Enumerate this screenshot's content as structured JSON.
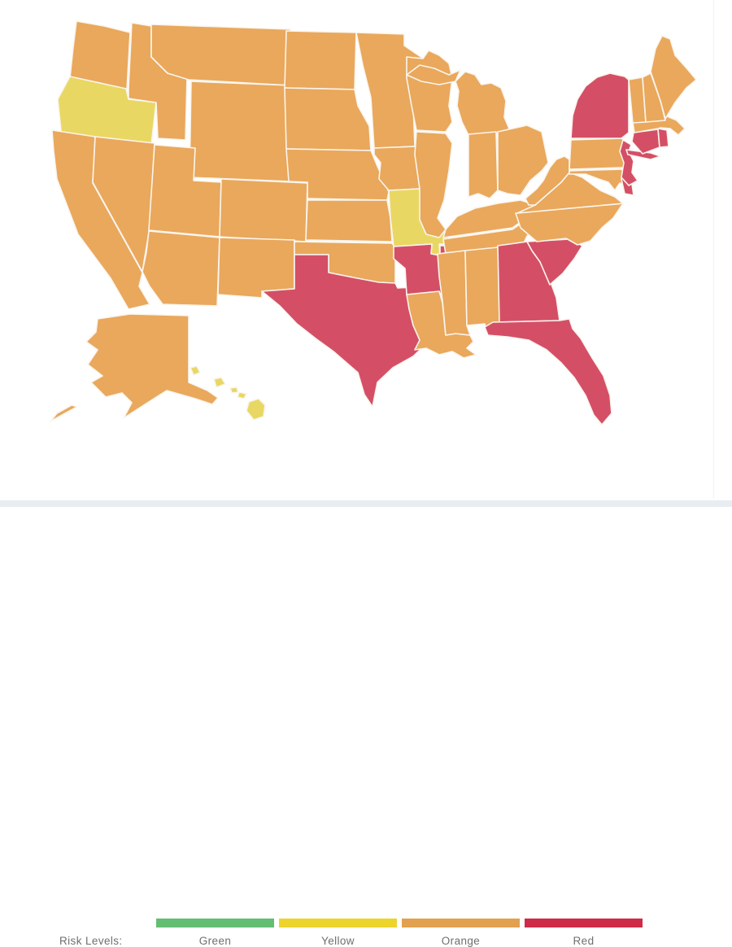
{
  "legend": {
    "title": "Risk Levels:",
    "levels": [
      {
        "key": "green",
        "label": "Green",
        "color": "#63bd72"
      },
      {
        "key": "yellow",
        "label": "Yellow",
        "color": "#ecd42d"
      },
      {
        "key": "orange",
        "label": "Orange",
        "color": "#e2a14e"
      },
      {
        "key": "red",
        "label": "Red",
        "color": "#ce2b49"
      }
    ]
  },
  "map": {
    "fill_colors": {
      "green": "#6abf77",
      "yellow": "#e9d763",
      "orange": "#e9a85c",
      "red": "#d44f66"
    },
    "border_color": "#faf5ee",
    "states": {
      "WA": "orange",
      "OR": "yellow",
      "CA": "orange",
      "NV": "orange",
      "ID": "orange",
      "MT": "orange",
      "WY": "orange",
      "UT": "orange",
      "CO": "orange",
      "AZ": "orange",
      "NM": "orange",
      "ND": "orange",
      "SD": "orange",
      "NE": "orange",
      "KS": "orange",
      "OK": "orange",
      "TX": "red",
      "MN": "orange",
      "IA": "orange",
      "MO": "yellow",
      "AR": "red",
      "LA": "orange",
      "WI": "orange",
      "IL": "orange",
      "MI": "orange",
      "IN": "orange",
      "OH": "orange",
      "KY": "orange",
      "TN": "orange",
      "MS": "orange",
      "AL": "orange",
      "GA": "red",
      "FL": "red",
      "SC": "red",
      "NC": "orange",
      "VA": "orange",
      "WV": "orange",
      "MD": "orange",
      "DE": "red",
      "PA": "orange",
      "NJ": "red",
      "NY": "red",
      "CT": "red",
      "RI": "red",
      "MA": "orange",
      "VT": "orange",
      "NH": "orange",
      "ME": "orange",
      "AK": "orange",
      "HI": "yellow"
    }
  },
  "bottom_band_color": "#e8edf2"
}
